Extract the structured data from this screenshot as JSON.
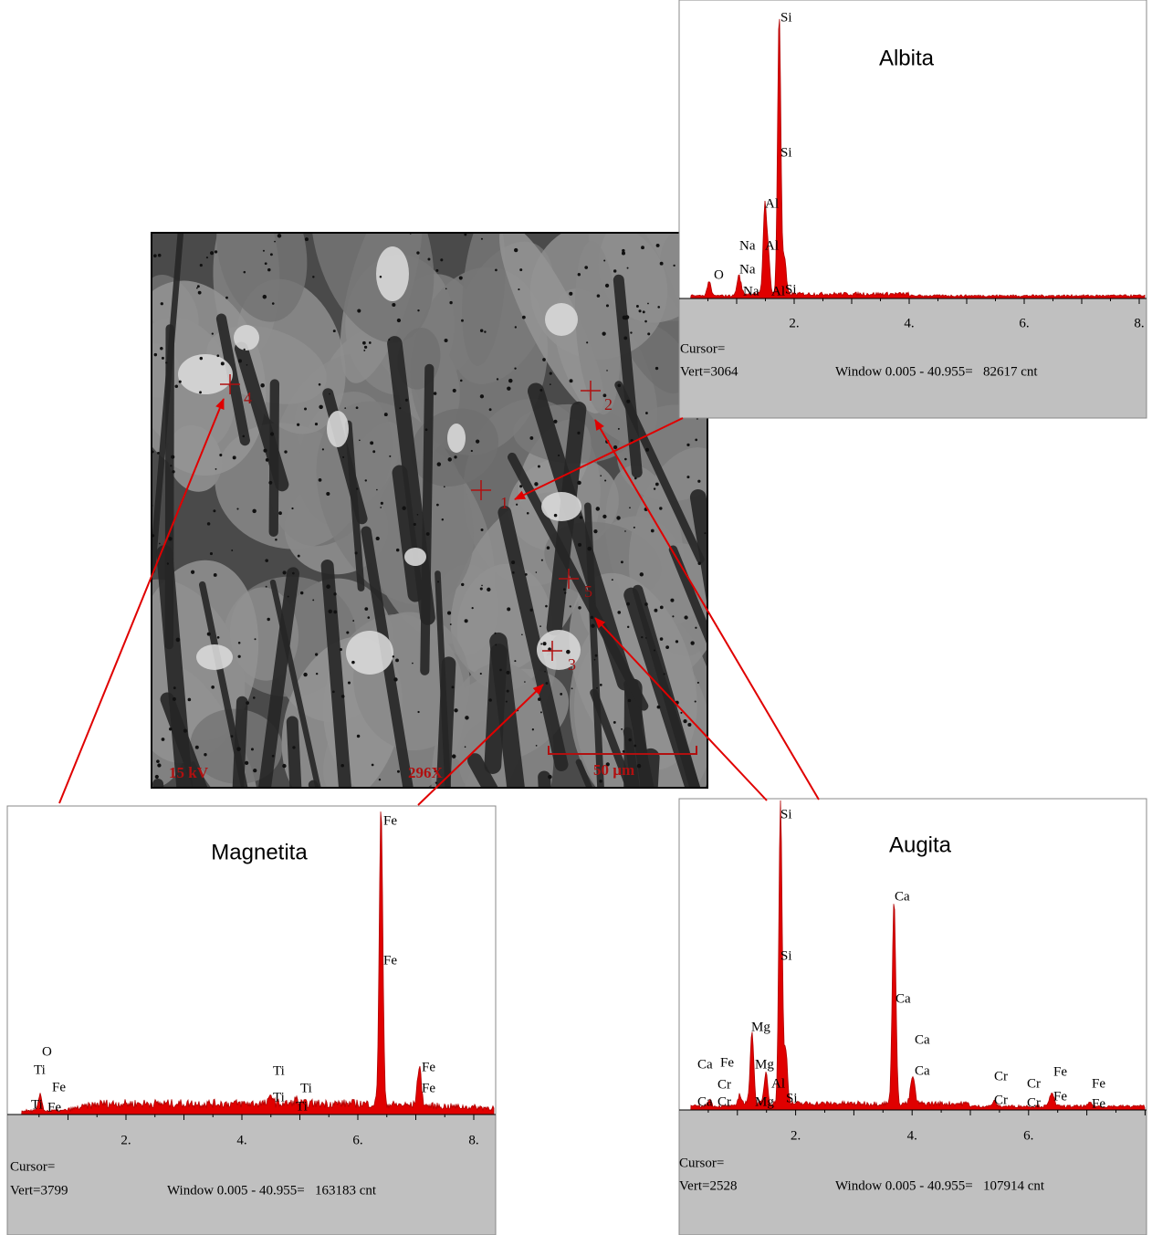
{
  "sem_image": {
    "voltage": "15 kV",
    "magnification": "296X",
    "scale_bar": "50 µm",
    "points": [
      "1",
      "2",
      "3",
      "4",
      "5"
    ]
  },
  "spectra": [
    {
      "title": "Albita",
      "peak_labels": [
        "O",
        "Na",
        "Na",
        "Na",
        "Al",
        "Al",
        "Al",
        "Si",
        "Si",
        "Si"
      ],
      "x_tick_labels": [
        "2.",
        "4.",
        "6.",
        "8."
      ],
      "cursor": "Cursor=",
      "vert": "Vert=3064",
      "window": "Window 0.005 - 40.955=   82617 cnt"
    },
    {
      "title": "Magnetita",
      "peak_labels": [
        "O",
        "Ti",
        "Fe",
        "Ti",
        "Fe",
        "Ti",
        "Ti",
        "Ti",
        "Ti",
        "Fe",
        "Fe",
        "Fe",
        "Fe"
      ],
      "x_tick_labels": [
        "2.",
        "4.",
        "6.",
        "8."
      ],
      "cursor": "Cursor=",
      "vert": "Vert=3799",
      "window": "Window 0.005 - 40.955=   163183 cnt"
    },
    {
      "title": "Augita",
      "peak_labels": [
        "Si",
        "Si",
        "Ca",
        "Ca",
        "Ca",
        "Ca",
        "Mg",
        "Mg",
        "Al",
        "Ca",
        "Fe",
        "Cr",
        "Ca",
        "Cr",
        "Mg",
        "Si",
        "Cr",
        "Cr",
        "Cr",
        "Fe",
        "Cr",
        "Fe",
        "Fe",
        "Fe"
      ],
      "x_tick_labels": [
        "2.",
        "4.",
        "6."
      ],
      "cursor": "Cursor=",
      "vert": "Vert=2528",
      "window": "Window 0.005 - 40.955=   107914 cnt"
    }
  ]
}
